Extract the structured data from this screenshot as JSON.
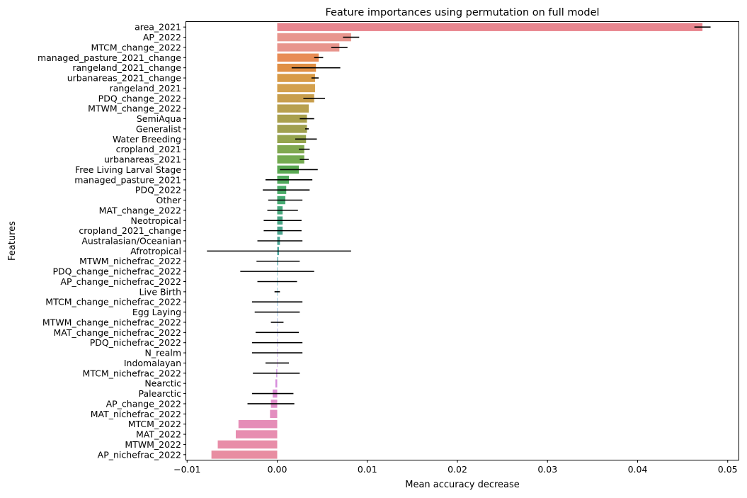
{
  "chart_data": {
    "type": "bar",
    "orientation": "horizontal",
    "title": "Feature importances using permutation on full model",
    "xlabel": "Mean accuracy decrease",
    "ylabel": "Features",
    "xlim": [
      -0.0101,
      0.0512
    ],
    "xticks": [
      -0.01,
      0.0,
      0.01,
      0.02,
      0.03,
      0.04,
      0.05
    ],
    "xtick_labels": [
      "−0.01",
      "0.00",
      "0.01",
      "0.02",
      "0.03",
      "0.04",
      "0.05"
    ],
    "grid": false,
    "legend": "none",
    "categories": [
      "area_2021",
      "AP_2022",
      "MTCM_change_2022",
      "managed_pasture_2021_change",
      "rangeland_2021_change",
      "urbanareas_2021_change",
      "rangeland_2021",
      "PDQ_change_2022",
      "MTWM_change_2022",
      "SemiAqua",
      "Generalist",
      "Water Breeding",
      "cropland_2021",
      "urbanareas_2021",
      "Free Living Larval Stage",
      "managed_pasture_2021",
      "PDQ_2022",
      "Other",
      "MAT_change_2022",
      "Neotropical",
      "cropland_2021_change",
      "Australasian/Oceanian",
      "Afrotropical",
      "MTWM_nichefrac_2022",
      "PDQ_change_nichefrac_2022",
      "AP_change_nichefrac_2022",
      "Live Birth ",
      "MTCM_change_nichefrac_2022",
      "Egg Laying",
      "MTWM_change_nichefrac_2022",
      "MAT_change_nichefrac_2022",
      "PDQ_nichefrac_2022",
      "N_realm",
      "Indomalayan",
      "MTCM_nichefrac_2022",
      "Nearctic",
      "Palearctic",
      "AP_change_2022",
      "MAT_nichefrac_2022",
      "MTCM_2022",
      "MAT_2022",
      "MTWM_2022",
      "AP_nichefrac_2022"
    ],
    "values": [
      0.0472,
      0.0082,
      0.0069,
      0.0046,
      0.0043,
      0.0042,
      0.0042,
      0.0041,
      0.0035,
      0.0033,
      0.0033,
      0.0032,
      0.003,
      0.003,
      0.0024,
      0.0013,
      0.001,
      0.0009,
      0.0006,
      0.0006,
      0.0006,
      0.0003,
      0.0002,
      0.0001,
      0.0,
      0.0,
      0.0,
      0.0,
      0.0,
      0.0,
      0.0,
      0.0,
      0.0,
      0.0,
      -0.0001,
      -0.0002,
      -0.0005,
      -0.0007,
      -0.0008,
      -0.0043,
      -0.0046,
      -0.0066,
      -0.0073
    ],
    "errors": [
      0.0009,
      0.0009,
      0.0009,
      0.0005,
      0.0027,
      0.0004,
      0.0,
      0.0012,
      0.0,
      0.0008,
      0.0002,
      0.0012,
      0.0006,
      0.0005,
      0.0021,
      0.0026,
      0.0026,
      0.0019,
      0.0017,
      0.0021,
      0.0021,
      0.0025,
      0.008,
      0.0024,
      0.0041,
      0.0022,
      0.0003,
      0.0028,
      0.0025,
      0.0007,
      0.0024,
      0.0028,
      0.0028,
      0.0013,
      0.0026,
      0.0,
      0.0023,
      0.0026,
      0.0,
      0.0,
      0.0,
      0.0,
      0.0
    ],
    "colors": [
      "#e8868f",
      "#e8968e",
      "#e8958d",
      "#e88c55",
      "#e08f44",
      "#d89a46",
      "#d3a04d",
      "#c89e4c",
      "#b8a04e",
      "#a9a04d",
      "#a0a04f",
      "#95a44e",
      "#80a850",
      "#74aa50",
      "#5aa852",
      "#52aa5e",
      "#4aab68",
      "#46aa72",
      "#46a87c",
      "#48a585",
      "#49a48d",
      "#4aa495",
      "#4aa59e",
      "#4aa5a8",
      "#4aa6b2",
      "#4aa6ba",
      "#4aa7c4",
      "#58a3cd",
      "#6a9ed4",
      "#7b98d9",
      "#8c93dc",
      "#9c8edf",
      "#ad88e0",
      "#bc86e0",
      "#c98ae0",
      "#d78ddc",
      "#dc8ed4",
      "#e08ec9",
      "#e38dbf",
      "#e58db7",
      "#e78db0",
      "#e88da8",
      "#e88da1"
    ]
  }
}
